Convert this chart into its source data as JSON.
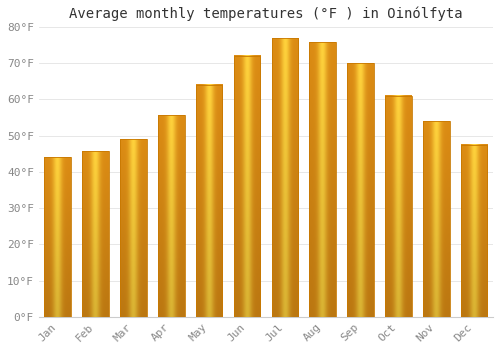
{
  "title": "Average monthly temperatures (°F ) in Oinólfyta",
  "months": [
    "Jan",
    "Feb",
    "Mar",
    "Apr",
    "May",
    "Jun",
    "Jul",
    "Aug",
    "Sep",
    "Oct",
    "Nov",
    "Dec"
  ],
  "values": [
    44.0,
    45.7,
    49.0,
    55.7,
    64.0,
    72.0,
    76.8,
    75.7,
    70.0,
    61.0,
    54.0,
    47.5
  ],
  "bar_color_left": "#F0A020",
  "bar_color_center": "#FFCC44",
  "bar_color_right": "#E09010",
  "ylim": [
    0,
    80
  ],
  "yticks": [
    0,
    10,
    20,
    30,
    40,
    50,
    60,
    70,
    80
  ],
  "ytick_labels": [
    "0°F",
    "10°F",
    "20°F",
    "30°F",
    "40°F",
    "50°F",
    "60°F",
    "70°F",
    "80°F"
  ],
  "background_color": "#FFFFFF",
  "grid_color": "#DDDDDD",
  "title_fontsize": 10,
  "tick_fontsize": 8,
  "font_family": "monospace",
  "bar_width": 0.7
}
